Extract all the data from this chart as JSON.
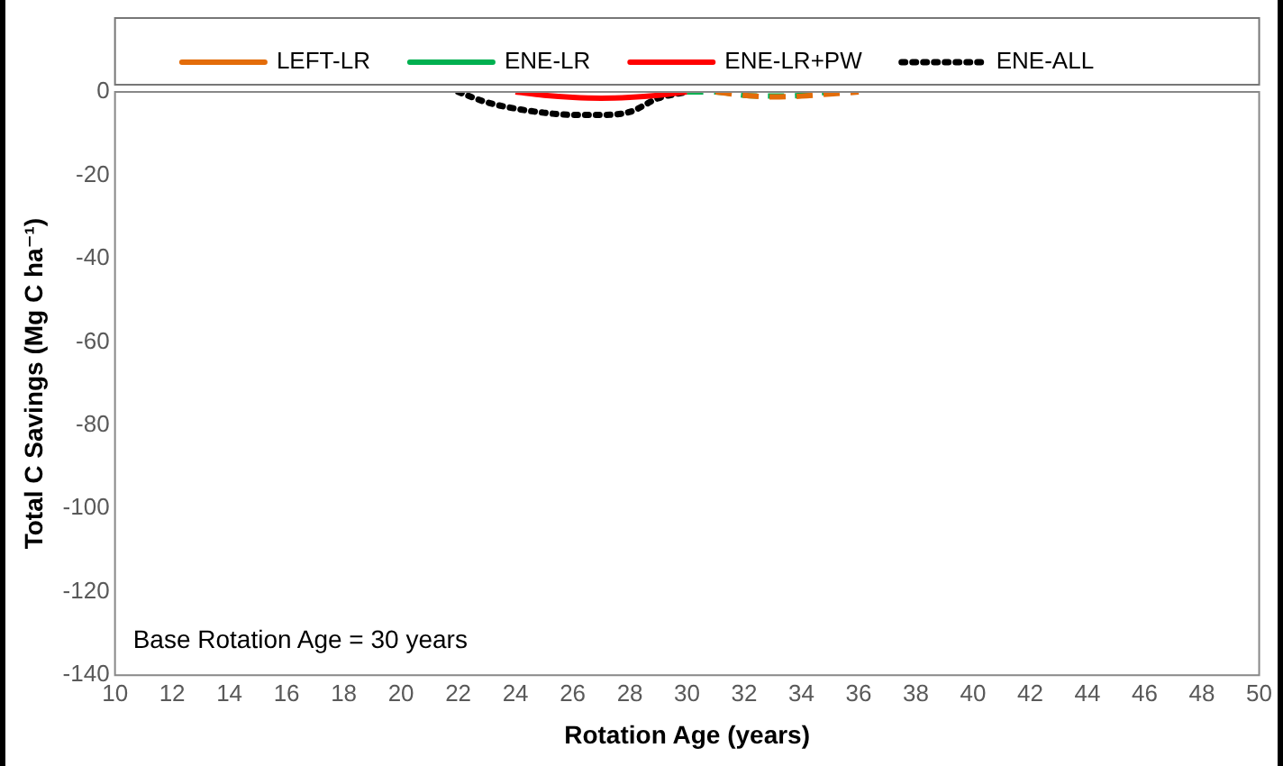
{
  "chart_data": {
    "type": "line",
    "xlabel": "Rotation Age (years)",
    "ylabel": "Total C Savings (Mg C ha⁻¹)",
    "series": [
      {
        "name": "LEFT-LR",
        "color": "#e36c09",
        "line_style": "dashed",
        "x": [
          31,
          32,
          33,
          34,
          35,
          36
        ],
        "values": [
          0,
          -0.8,
          -1.2,
          -1,
          -0.5,
          0
        ]
      },
      {
        "name": "ENE-LR",
        "color": "#00b050",
        "line_style": "dashed",
        "x": [
          30,
          31,
          32,
          33,
          34,
          35
        ],
        "values": [
          0,
          0,
          -0.8,
          -1,
          -0.8,
          0
        ]
      },
      {
        "name": "ENE-LR+PW",
        "color": "#ff0000",
        "line_style": "solid",
        "x": [
          24,
          25,
          26,
          27,
          28,
          29,
          30
        ],
        "values": [
          0,
          -0.8,
          -1.3,
          -1.5,
          -1.3,
          -0.8,
          0
        ]
      },
      {
        "name": "ENE-ALL",
        "color": "#000000",
        "line_style": "dotted",
        "x": [
          22,
          23,
          24,
          25,
          26,
          27,
          28,
          29,
          30
        ],
        "values": [
          0,
          -2.5,
          -4,
          -5,
          -5.5,
          -5.5,
          -4.8,
          -1.5,
          0
        ]
      }
    ],
    "xlim": [
      10,
      50
    ],
    "xticks": [
      10,
      12,
      14,
      16,
      18,
      20,
      22,
      24,
      26,
      28,
      30,
      32,
      34,
      36,
      38,
      40,
      42,
      44,
      46,
      48,
      50
    ],
    "ylim": [
      -140,
      0
    ],
    "yticks": [
      -140,
      -120,
      -100,
      -80,
      -60,
      -40,
      -20,
      0
    ],
    "grid": false,
    "legend": "top",
    "marker": "none",
    "annotations": [
      "Base Rotation Age = 30 years"
    ]
  }
}
